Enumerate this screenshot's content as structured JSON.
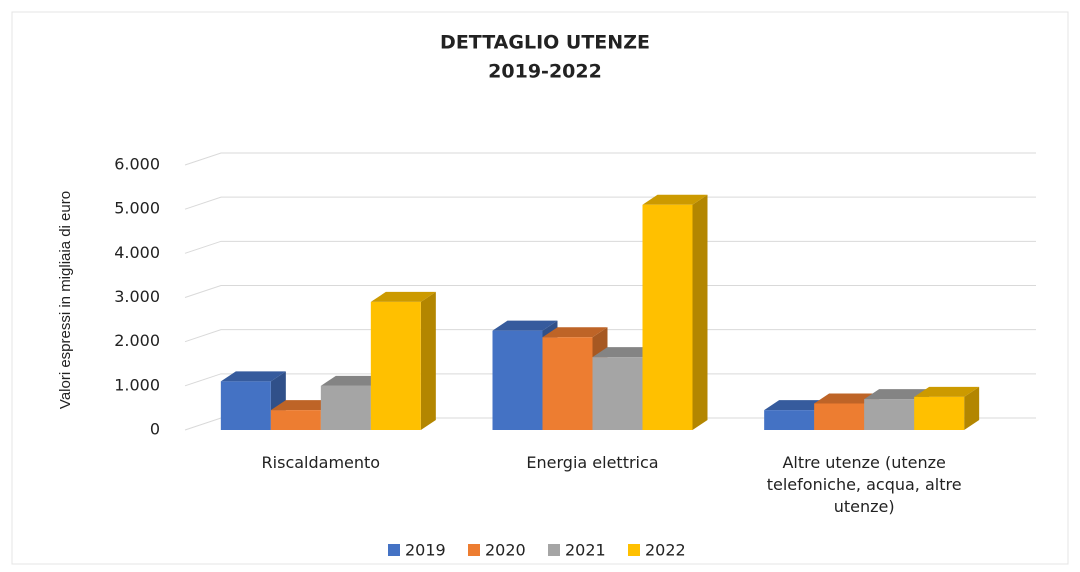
{
  "chart_data": {
    "type": "bar3d",
    "title": "DETTAGLIO UTENZE",
    "subtitle": "2019-2022",
    "y_label": "Valori espressi in migliaia di euro",
    "categories": [
      "Riscaldamento",
      "Energia elettrica",
      "Altre utenze (utenze telefoniche, acqua, altre utenze)"
    ],
    "series": [
      {
        "name": "2019",
        "color": "#4472c4",
        "values": [
          1100,
          2250,
          450
        ]
      },
      {
        "name": "2020",
        "color": "#ed7d31",
        "values": [
          450,
          2100,
          600
        ]
      },
      {
        "name": "2021",
        "color": "#a5a5a5",
        "values": [
          1000,
          1650,
          700
        ]
      },
      {
        "name": "2022",
        "color": "#ffc000",
        "values": [
          2900,
          5100,
          750
        ]
      }
    ],
    "ylim": [
      0,
      6000
    ],
    "yticks": [
      0,
      {
        "value": 1000,
        "label": "1.000"
      },
      {
        "value": 2000,
        "label": "2.000"
      },
      {
        "value": 3000,
        "label": "3.000"
      },
      {
        "value": 4000,
        "label": "4.000"
      },
      {
        "value": 5000,
        "label": "5.000"
      },
      {
        "value": 6000,
        "label": "6.000"
      }
    ],
    "grid": true,
    "legend": "bottom"
  }
}
